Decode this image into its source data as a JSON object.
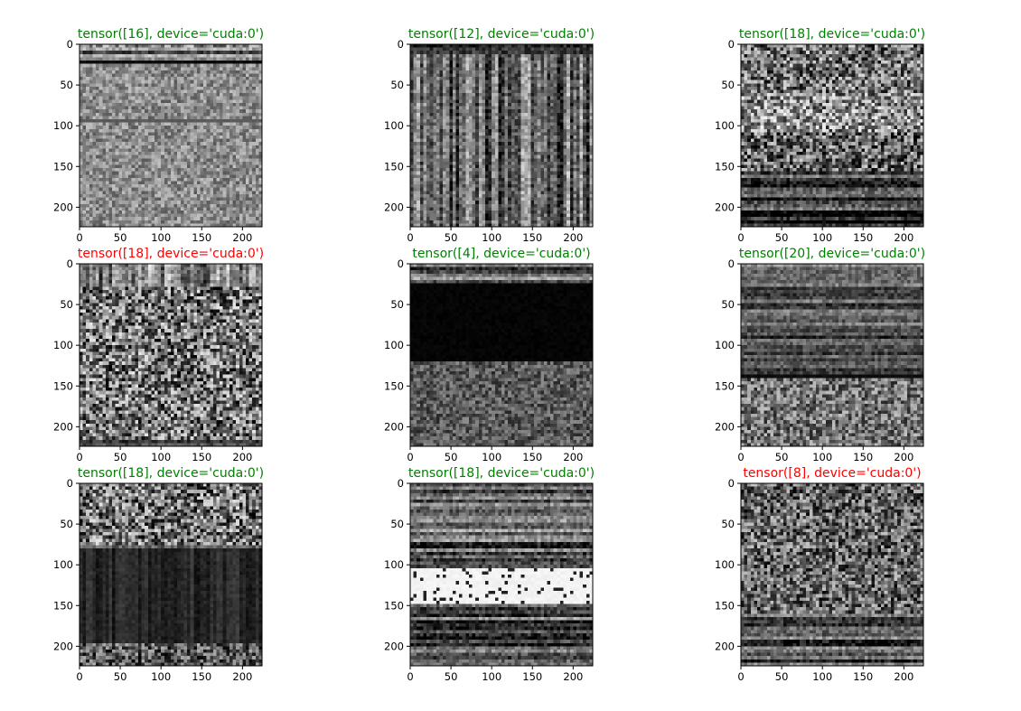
{
  "figure": {
    "kind": "grid of grayscale image subplots",
    "rows": 3,
    "cols": 3
  },
  "colors": {
    "correct": "#008000",
    "incorrect": "#ff0000",
    "axis": "#000000"
  },
  "chart_data": [
    {
      "type": "heatmap",
      "title": "tensor([16], device='cuda:0')",
      "title_color": "#008000",
      "xlim": [
        0,
        224
      ],
      "ylim": [
        224,
        0
      ],
      "xticks": [
        0,
        50,
        100,
        150,
        200
      ],
      "yticks": [
        0,
        50,
        100,
        150,
        200
      ],
      "pattern": [
        {
          "y0": 0,
          "y1": 5,
          "kind": "noise",
          "mean": 0.55,
          "spread": 0.45
        },
        {
          "y0": 5,
          "y1": 22,
          "kind": "stripes",
          "mean": 0.5,
          "spread": 0.5
        },
        {
          "y0": 22,
          "y1": 26,
          "kind": "solid",
          "mean": 0.05
        },
        {
          "y0": 26,
          "y1": 93,
          "kind": "noise",
          "mean": 0.55,
          "spread": 0.3
        },
        {
          "y0": 93,
          "y1": 95,
          "kind": "solid",
          "mean": 0.35
        },
        {
          "y0": 95,
          "y1": 224,
          "kind": "noise",
          "mean": 0.55,
          "spread": 0.3
        }
      ]
    },
    {
      "type": "heatmap",
      "title": "tensor([12], device='cuda:0')",
      "title_color": "#008000",
      "xlim": [
        0,
        224
      ],
      "ylim": [
        224,
        0
      ],
      "xticks": [
        0,
        50,
        100,
        150,
        200
      ],
      "yticks": [
        0,
        50,
        100,
        150,
        200
      ],
      "pattern": [
        {
          "y0": 0,
          "y1": 12,
          "kind": "stripes",
          "mean": 0.3,
          "spread": 0.5
        },
        {
          "y0": 12,
          "y1": 224,
          "kind": "columns",
          "mean": 0.4,
          "spread": 0.6
        }
      ]
    },
    {
      "type": "heatmap",
      "title": "tensor([18], device='cuda:0')",
      "title_color": "#008000",
      "xlim": [
        0,
        224
      ],
      "ylim": [
        224,
        0
      ],
      "xticks": [
        0,
        50,
        100,
        150,
        200
      ],
      "yticks": [
        0,
        50,
        100,
        150,
        200
      ],
      "pattern": [
        {
          "y0": 0,
          "y1": 60,
          "kind": "noise",
          "mean": 0.45,
          "spread": 0.6
        },
        {
          "y0": 60,
          "y1": 110,
          "kind": "noise",
          "mean": 0.55,
          "spread": 0.6
        },
        {
          "y0": 110,
          "y1": 155,
          "kind": "noise",
          "mean": 0.4,
          "spread": 0.6
        },
        {
          "y0": 155,
          "y1": 224,
          "kind": "stripes",
          "mean": 0.25,
          "spread": 0.6
        }
      ]
    },
    {
      "type": "heatmap",
      "title": "tensor([18], device='cuda:0')",
      "title_color": "#ff0000",
      "xlim": [
        0,
        224
      ],
      "ylim": [
        224,
        0
      ],
      "xticks": [
        0,
        50,
        100,
        150,
        200
      ],
      "yticks": [
        0,
        50,
        100,
        150,
        200
      ],
      "pattern": [
        {
          "y0": 0,
          "y1": 30,
          "kind": "columns",
          "mean": 0.5,
          "spread": 0.6
        },
        {
          "y0": 30,
          "y1": 215,
          "kind": "noise",
          "mean": 0.45,
          "spread": 0.65
        },
        {
          "y0": 215,
          "y1": 224,
          "kind": "stripes",
          "mean": 0.2,
          "spread": 0.5
        }
      ]
    },
    {
      "type": "heatmap",
      "title": "tensor([4], device='cuda:0')",
      "title_color": "#008000",
      "xlim": [
        0,
        224
      ],
      "ylim": [
        224,
        0
      ],
      "xticks": [
        0,
        50,
        100,
        150,
        200
      ],
      "yticks": [
        0,
        50,
        100,
        150,
        200
      ],
      "pattern": [
        {
          "y0": 0,
          "y1": 25,
          "kind": "stripes",
          "mean": 0.4,
          "spread": 0.5
        },
        {
          "y0": 25,
          "y1": 120,
          "kind": "solid",
          "mean": 0.02
        },
        {
          "y0": 120,
          "y1": 224,
          "kind": "noise",
          "mean": 0.35,
          "spread": 0.3
        }
      ]
    },
    {
      "type": "heatmap",
      "title": "tensor([20], device='cuda:0')",
      "title_color": "#008000",
      "xlim": [
        0,
        224
      ],
      "ylim": [
        224,
        0
      ],
      "xticks": [
        0,
        50,
        100,
        150,
        200
      ],
      "yticks": [
        0,
        50,
        100,
        150,
        200
      ],
      "pattern": [
        {
          "y0": 0,
          "y1": 30,
          "kind": "stripes",
          "mean": 0.35,
          "spread": 0.5
        },
        {
          "y0": 30,
          "y1": 135,
          "kind": "stripes",
          "mean": 0.35,
          "spread": 0.45
        },
        {
          "y0": 135,
          "y1": 142,
          "kind": "solid",
          "mean": 0.05
        },
        {
          "y0": 142,
          "y1": 224,
          "kind": "noise",
          "mean": 0.45,
          "spread": 0.45
        }
      ]
    },
    {
      "type": "heatmap",
      "title": "tensor([18], device='cuda:0')",
      "title_color": "#008000",
      "xlim": [
        0,
        224
      ],
      "ylim": [
        224,
        0
      ],
      "xticks": [
        0,
        50,
        100,
        150,
        200
      ],
      "yticks": [
        0,
        50,
        100,
        150,
        200
      ],
      "pattern": [
        {
          "y0": 0,
          "y1": 75,
          "kind": "noise",
          "mean": 0.45,
          "spread": 0.65
        },
        {
          "y0": 75,
          "y1": 80,
          "kind": "stripes",
          "mean": 0.5,
          "spread": 0.5
        },
        {
          "y0": 80,
          "y1": 195,
          "kind": "columns",
          "mean": 0.15,
          "spread": 0.15
        },
        {
          "y0": 195,
          "y1": 224,
          "kind": "noise",
          "mean": 0.35,
          "spread": 0.5
        }
      ]
    },
    {
      "type": "heatmap",
      "title": "tensor([18], device='cuda:0')",
      "title_color": "#008000",
      "xlim": [
        0,
        224
      ],
      "ylim": [
        224,
        0
      ],
      "xticks": [
        0,
        50,
        100,
        150,
        200
      ],
      "yticks": [
        0,
        50,
        100,
        150,
        200
      ],
      "pattern": [
        {
          "y0": 0,
          "y1": 75,
          "kind": "stripes",
          "mean": 0.4,
          "spread": 0.55
        },
        {
          "y0": 75,
          "y1": 105,
          "kind": "stripes",
          "mean": 0.3,
          "spread": 0.6
        },
        {
          "y0": 105,
          "y1": 150,
          "kind": "bright",
          "mean": 0.95,
          "spread": 0.2
        },
        {
          "y0": 150,
          "y1": 224,
          "kind": "stripes",
          "mean": 0.35,
          "spread": 0.55
        }
      ]
    },
    {
      "type": "heatmap",
      "title": "tensor([8], device='cuda:0')",
      "title_color": "#ff0000",
      "xlim": [
        0,
        224
      ],
      "ylim": [
        224,
        0
      ],
      "xticks": [
        0,
        50,
        100,
        150,
        200
      ],
      "yticks": [
        0,
        50,
        100,
        150,
        200
      ],
      "pattern": [
        {
          "y0": 0,
          "y1": 160,
          "kind": "noise",
          "mean": 0.4,
          "spread": 0.55
        },
        {
          "y0": 160,
          "y1": 224,
          "kind": "stripes",
          "mean": 0.3,
          "spread": 0.55
        }
      ]
    }
  ]
}
